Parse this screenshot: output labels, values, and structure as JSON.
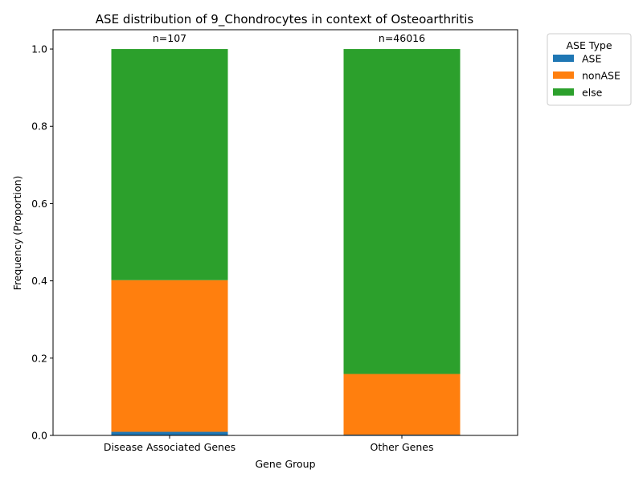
{
  "chart_data": {
    "type": "bar",
    "stacked": true,
    "title": "ASE distribution of 9_Chondrocytes in context of Osteoarthritis",
    "xlabel": "Gene Group",
    "ylabel": "Frequency (Proportion)",
    "ylim": [
      0,
      1.05
    ],
    "yticks": [
      "0.0",
      "0.2",
      "0.4",
      "0.6",
      "0.8",
      "1.0"
    ],
    "categories": [
      "Disease Associated Genes",
      "Other Genes"
    ],
    "annotations": [
      "n=107",
      "n=46016"
    ],
    "series": [
      {
        "name": "ASE",
        "color": "#1f77b4",
        "values": [
          0.0093,
          0.002
        ]
      },
      {
        "name": "nonASE",
        "color": "#ff7f0e",
        "values": [
          0.3925,
          0.157
        ]
      },
      {
        "name": "else",
        "color": "#2ca02c",
        "values": [
          0.5982,
          0.841
        ]
      }
    ],
    "legend": {
      "title": "ASE Type",
      "placement": "outside-top-right"
    },
    "grid": false
  }
}
